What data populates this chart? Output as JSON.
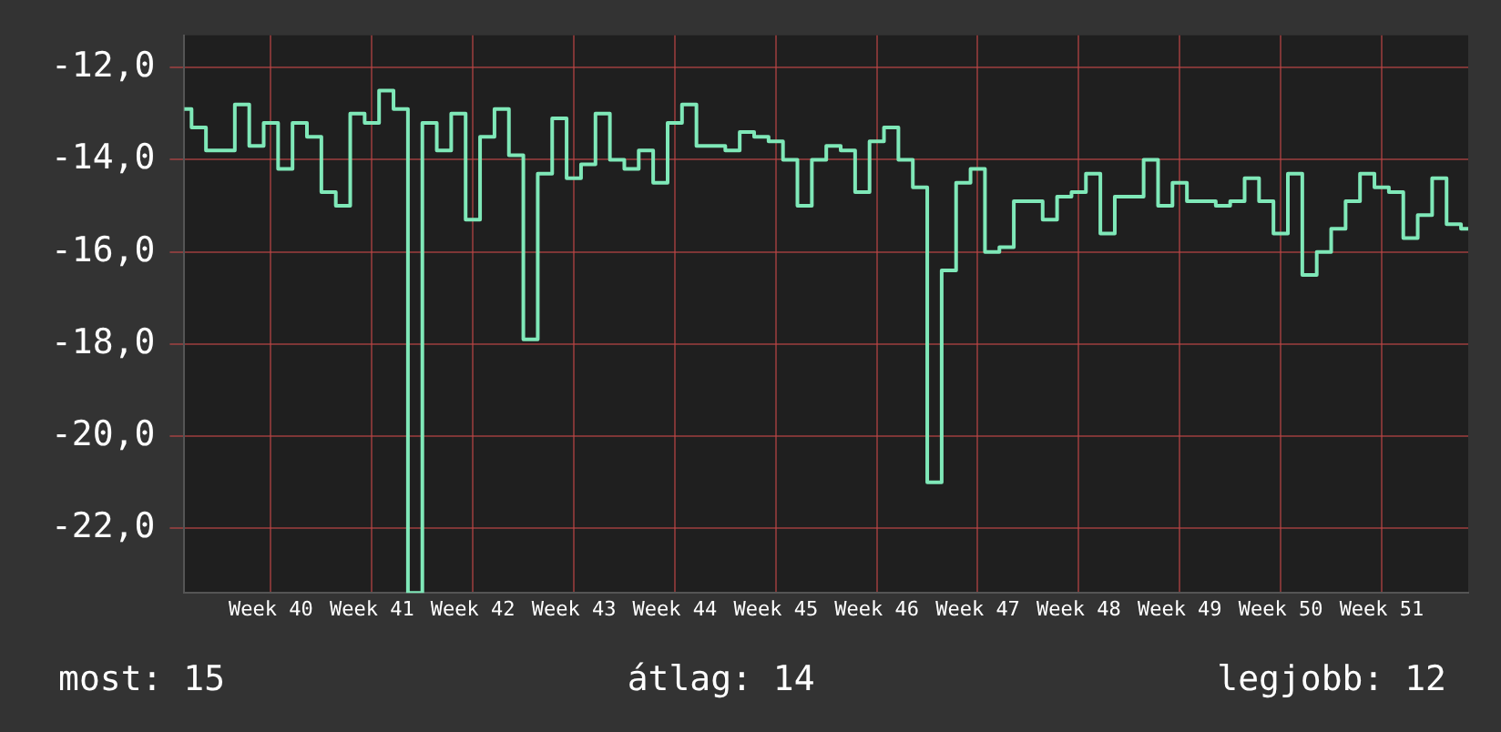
{
  "chart_data": {
    "type": "step",
    "categories": [
      null,
      null,
      null,
      null,
      null,
      null,
      "Week 40",
      null,
      null,
      null,
      null,
      null,
      null,
      "Week 41",
      null,
      null,
      null,
      null,
      null,
      null,
      "Week 42",
      null,
      null,
      null,
      null,
      null,
      null,
      "Week 43",
      null,
      null,
      null,
      null,
      null,
      null,
      "Week 44",
      null,
      null,
      null,
      null,
      null,
      null,
      "Week 45",
      null,
      null,
      null,
      null,
      null,
      null,
      "Week 46",
      null,
      null,
      null,
      null,
      null,
      null,
      "Week 47",
      null,
      null,
      null,
      null,
      null,
      null,
      "Week 48",
      null,
      null,
      null,
      null,
      null,
      null,
      "Week 49",
      null,
      null,
      null,
      null,
      null,
      null,
      "Week 50",
      null,
      null,
      null,
      null,
      null,
      null,
      "Week 51",
      null,
      null,
      null,
      null,
      null,
      null
    ],
    "series": [
      {
        "color": "#7fe8b8",
        "values": [
          -12.9,
          -13.3,
          -13.8,
          -13.8,
          -12.8,
          -13.7,
          -13.2,
          -14.2,
          -13.2,
          -13.5,
          -14.7,
          -15.0,
          -13.0,
          -13.2,
          -12.5,
          -12.9,
          -23.4,
          -13.2,
          -13.8,
          -13.0,
          -15.3,
          -13.5,
          -12.9,
          -13.9,
          -17.9,
          -14.3,
          -13.1,
          -14.4,
          -14.1,
          -13.0,
          -14.0,
          -14.2,
          -13.8,
          -14.5,
          -13.2,
          -12.8,
          -13.7,
          -13.7,
          -13.8,
          -13.4,
          -13.5,
          -13.6,
          -14.0,
          -15.0,
          -14.0,
          -13.7,
          -13.8,
          -14.7,
          -13.6,
          -13.3,
          -14.0,
          -14.6,
          -21.0,
          -16.4,
          -14.5,
          -14.2,
          -16.0,
          -15.9,
          -14.9,
          -14.9,
          -15.3,
          -14.8,
          -14.7,
          -14.3,
          -15.6,
          -14.8,
          -14.8,
          -14.0,
          -15.0,
          -14.5,
          -14.9,
          -14.9,
          -15.0,
          -14.9,
          -14.4,
          -14.9,
          -15.6,
          -14.3,
          -16.5,
          -16.0,
          -15.5,
          -14.9,
          -14.3,
          -14.6,
          -14.7,
          -15.7,
          -15.2,
          -14.4,
          -15.4,
          -15.5
        ]
      }
    ],
    "ylim": [
      -23.4,
      -11.3
    ],
    "yticks": [
      {
        "value": -22,
        "label": "-22,0"
      },
      {
        "value": -20,
        "label": "-20,0"
      },
      {
        "value": -18,
        "label": "-18,0"
      },
      {
        "value": -16,
        "label": "-16,0"
      },
      {
        "value": -14,
        "label": "-14,0"
      },
      {
        "value": -12,
        "label": "-12,0"
      }
    ],
    "grid": true,
    "annotations": [
      "most: 15",
      "átlag: 14",
      "legjobb: 12"
    ]
  }
}
